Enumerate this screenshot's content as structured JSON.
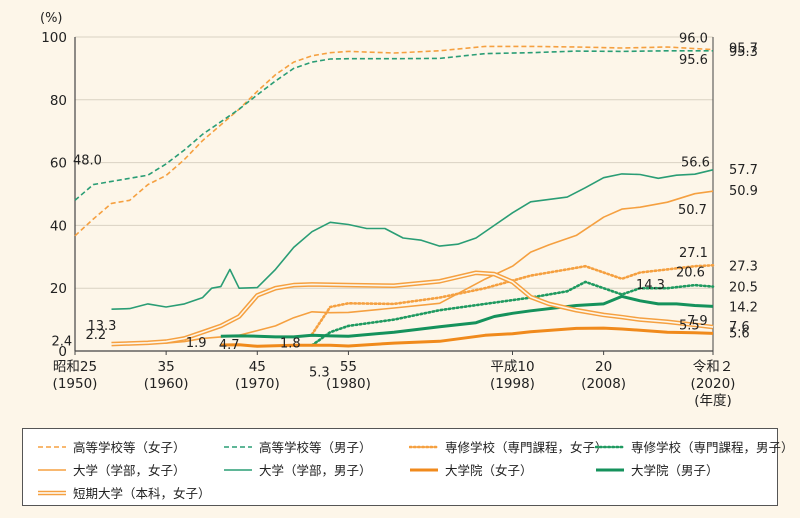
{
  "chart_data": {
    "type": "line",
    "ylabel": "(%)",
    "ylim": [
      0,
      100
    ],
    "yticks": [
      0,
      20,
      40,
      60,
      80,
      100
    ],
    "xlim": [
      1950,
      2020
    ],
    "xticks": [
      {
        "x": 1950,
        "lines": [
          "昭和25",
          "(1950)"
        ]
      },
      {
        "x": 1960,
        "lines": [
          "35",
          "(1960)"
        ]
      },
      {
        "x": 1970,
        "lines": [
          "45",
          "(1970)"
        ]
      },
      {
        "x": 1980,
        "lines": [
          "55",
          "(1980)"
        ]
      },
      {
        "x": 1998,
        "lines": [
          "平成10",
          "(1998)"
        ]
      },
      {
        "x": 2008,
        "lines": [
          "20",
          "(2008)"
        ]
      },
      {
        "x": 2020,
        "lines": [
          "令和２",
          "(2020)",
          "(年度)"
        ]
      }
    ],
    "grid": "horizontal",
    "legend": "bottom",
    "series": [
      {
        "name": "高等学校等（女子）",
        "color": "#f5a040",
        "style": "dashed",
        "points": [
          [
            1950,
            36.7
          ],
          [
            1952,
            42
          ],
          [
            1954,
            47
          ],
          [
            1956,
            48
          ],
          [
            1958,
            53
          ],
          [
            1960,
            55.9
          ],
          [
            1962,
            61
          ],
          [
            1964,
            67
          ],
          [
            1966,
            72
          ],
          [
            1968,
            77
          ],
          [
            1970,
            82.7
          ],
          [
            1972,
            88
          ],
          [
            1974,
            92
          ],
          [
            1976,
            94
          ],
          [
            1978,
            95
          ],
          [
            1980,
            95.4
          ],
          [
            1985,
            94.9
          ],
          [
            1990,
            95.6
          ],
          [
            1995,
            97
          ],
          [
            2000,
            97
          ],
          [
            2005,
            96.8
          ],
          [
            2010,
            96.5
          ],
          [
            2015,
            96.8
          ],
          [
            2020,
            96.0
          ]
        ]
      },
      {
        "name": "高等学校等（男子）",
        "color": "#2a9d75",
        "style": "dashed",
        "points": [
          [
            1950,
            48.0
          ],
          [
            1952,
            53
          ],
          [
            1954,
            54
          ],
          [
            1956,
            55
          ],
          [
            1958,
            56
          ],
          [
            1960,
            59.6
          ],
          [
            1962,
            64
          ],
          [
            1964,
            69
          ],
          [
            1966,
            73
          ],
          [
            1968,
            77
          ],
          [
            1970,
            81.6
          ],
          [
            1972,
            86
          ],
          [
            1974,
            90
          ],
          [
            1976,
            92
          ],
          [
            1978,
            93
          ],
          [
            1980,
            93.1
          ],
          [
            1985,
            93.1
          ],
          [
            1990,
            93.2
          ],
          [
            1995,
            94.7
          ],
          [
            2000,
            95
          ],
          [
            2005,
            95.5
          ],
          [
            2010,
            95.4
          ],
          [
            2015,
            95.6
          ],
          [
            2020,
            95.6
          ]
        ]
      },
      {
        "name": "専修学校（専門課程，女子）",
        "color": "#f5a040",
        "style": "dotted",
        "points": [
          [
            1976,
            5.3
          ],
          [
            1978,
            14
          ],
          [
            1980,
            15.2
          ],
          [
            1985,
            15
          ],
          [
            1990,
            17
          ],
          [
            1995,
            20
          ],
          [
            2000,
            24
          ],
          [
            2004,
            26
          ],
          [
            2006,
            27
          ],
          [
            2008,
            25
          ],
          [
            2010,
            23
          ],
          [
            2012,
            25
          ],
          [
            2015,
            26
          ],
          [
            2018,
            27
          ],
          [
            2020,
            27.3
          ]
        ]
      },
      {
        "name": "専修学校（専門課程，男子）",
        "color": "#1f9a60",
        "style": "dotted",
        "points": [
          [
            1976,
            1.8
          ],
          [
            1978,
            6
          ],
          [
            1980,
            8
          ],
          [
            1985,
            10
          ],
          [
            1990,
            13
          ],
          [
            1995,
            15
          ],
          [
            2000,
            17
          ],
          [
            2004,
            19
          ],
          [
            2006,
            22
          ],
          [
            2008,
            20
          ],
          [
            2010,
            18
          ],
          [
            2012,
            20
          ],
          [
            2015,
            20
          ],
          [
            2018,
            21
          ],
          [
            2020,
            20.5
          ]
        ]
      },
      {
        "name": "大学（学部，女子）",
        "color": "#f5a040",
        "style": "solid",
        "points": [
          [
            1954,
            2.4
          ],
          [
            1958,
            2.5
          ],
          [
            1960,
            2.5
          ],
          [
            1962,
            3
          ],
          [
            1964,
            4
          ],
          [
            1966,
            4.5
          ],
          [
            1968,
            5
          ],
          [
            1970,
            6.5
          ],
          [
            1972,
            8
          ],
          [
            1974,
            10.6
          ],
          [
            1976,
            12.5
          ],
          [
            1978,
            12.2
          ],
          [
            1980,
            12.3
          ],
          [
            1985,
            13.7
          ],
          [
            1990,
            15.2
          ],
          [
            1995,
            22.9
          ],
          [
            1998,
            27
          ],
          [
            2000,
            31.5
          ],
          [
            2002,
            33.8
          ],
          [
            2005,
            36.8
          ],
          [
            2008,
            42.6
          ],
          [
            2010,
            45.2
          ],
          [
            2012,
            45.8
          ],
          [
            2015,
            47.4
          ],
          [
            2018,
            50.1
          ],
          [
            2020,
            50.9
          ]
        ]
      },
      {
        "name": "大学（学部，男子）",
        "color": "#2a9d75",
        "style": "solid",
        "points": [
          [
            1954,
            13.3
          ],
          [
            1956,
            13.5
          ],
          [
            1958,
            15
          ],
          [
            1960,
            14.0
          ],
          [
            1962,
            15
          ],
          [
            1964,
            17
          ],
          [
            1965,
            20
          ],
          [
            1966,
            20.5
          ],
          [
            1967,
            26
          ],
          [
            1968,
            20
          ],
          [
            1970,
            20.2
          ],
          [
            1972,
            26
          ],
          [
            1974,
            33
          ],
          [
            1976,
            38
          ],
          [
            1978,
            41
          ],
          [
            1980,
            40.3
          ],
          [
            1982,
            39
          ],
          [
            1984,
            39
          ],
          [
            1986,
            36
          ],
          [
            1988,
            35.3
          ],
          [
            1990,
            33.4
          ],
          [
            1992,
            34
          ],
          [
            1994,
            36
          ],
          [
            1996,
            40
          ],
          [
            1998,
            44
          ],
          [
            2000,
            47.5
          ],
          [
            2004,
            49
          ],
          [
            2006,
            52
          ],
          [
            2008,
            55.2
          ],
          [
            2010,
            56.4
          ],
          [
            2012,
            56.2
          ],
          [
            2014,
            55
          ],
          [
            2016,
            56
          ],
          [
            2018,
            56.3
          ],
          [
            2020,
            57.7
          ]
        ]
      },
      {
        "name": "大学院（女子）",
        "color": "#f08a1c",
        "style": "solid-thick",
        "points": [
          [
            1966,
            1.9
          ],
          [
            1968,
            2
          ],
          [
            1970,
            1.5
          ],
          [
            1974,
            1.8
          ],
          [
            1978,
            1.8
          ],
          [
            1980,
            1.6
          ],
          [
            1985,
            2.5
          ],
          [
            1990,
            3.1
          ],
          [
            1995,
            5
          ],
          [
            1998,
            5.5
          ],
          [
            2000,
            6.1
          ],
          [
            2005,
            7.2
          ],
          [
            2008,
            7.3
          ],
          [
            2010,
            7.0
          ],
          [
            2015,
            6
          ],
          [
            2018,
            5.8
          ],
          [
            2020,
            5.6
          ]
        ]
      },
      {
        "name": "大学院（男子）",
        "color": "#15925c",
        "style": "solid-thick",
        "points": [
          [
            1966,
            4.7
          ],
          [
            1968,
            4.8
          ],
          [
            1970,
            4.7
          ],
          [
            1972,
            4.5
          ],
          [
            1974,
            4.5
          ],
          [
            1976,
            5
          ],
          [
            1978,
            4.8
          ],
          [
            1980,
            4.7
          ],
          [
            1985,
            6
          ],
          [
            1990,
            7.7
          ],
          [
            1994,
            9
          ],
          [
            1996,
            11
          ],
          [
            1998,
            12
          ],
          [
            2000,
            12.8
          ],
          [
            2005,
            14.5
          ],
          [
            2008,
            15
          ],
          [
            2010,
            17.4
          ],
          [
            2012,
            16
          ],
          [
            2014,
            15
          ],
          [
            2016,
            15
          ],
          [
            2018,
            14.5
          ],
          [
            2020,
            14.2
          ]
        ]
      },
      {
        "name": "短期大学（本科，女子）",
        "color": "#f5a040",
        "style": "double",
        "points": [
          [
            1954,
            2.2
          ],
          [
            1958,
            2.6
          ],
          [
            1960,
            3.0
          ],
          [
            1962,
            4
          ],
          [
            1964,
            6
          ],
          [
            1966,
            8
          ],
          [
            1968,
            11
          ],
          [
            1970,
            17.7
          ],
          [
            1972,
            20
          ],
          [
            1974,
            21
          ],
          [
            1976,
            21.2
          ],
          [
            1980,
            21.0
          ],
          [
            1985,
            20.8
          ],
          [
            1990,
            22.2
          ],
          [
            1994,
            24.9
          ],
          [
            1996,
            24.5
          ],
          [
            1998,
            22
          ],
          [
            2000,
            17.2
          ],
          [
            2002,
            15
          ],
          [
            2005,
            13.0
          ],
          [
            2008,
            11.5
          ],
          [
            2010,
            10.8
          ],
          [
            2012,
            10
          ],
          [
            2015,
            9.3
          ],
          [
            2018,
            8.3
          ],
          [
            2020,
            7.6
          ]
        ]
      }
    ],
    "annotations": [
      {
        "text": "48.0",
        "x": 1950,
        "y": 48.0,
        "series": "高等学校等（男子）"
      },
      {
        "text": "13.3",
        "x": 1954,
        "y": 13.3,
        "series": "大学（学部，男子）"
      },
      {
        "text": "2.4",
        "x": 1954,
        "y": 2.4,
        "series": "大学（学部，女子）"
      },
      {
        "text": "2.2",
        "x": 1954,
        "y": 2.2,
        "series": "短期大学（本科，女子）"
      },
      {
        "text": "4.7",
        "x": 1966,
        "y": 4.7,
        "series": "大学院（男子）"
      },
      {
        "text": "1.9",
        "x": 1966,
        "y": 1.9,
        "series": "大学院（女子）"
      },
      {
        "text": "5.3",
        "x": 1976,
        "y": 5.3,
        "series": "専修学校（専門課程，女子）"
      },
      {
        "text": "1.8",
        "x": 1976,
        "y": 1.8,
        "series": "専修学校（専門課程，男子）"
      },
      {
        "text": "96.0",
        "x": 2020,
        "y": 96.0,
        "series": "高等学校等（女子）"
      },
      {
        "text": "95.7",
        "x": 2020,
        "y": 95.7,
        "series": "高等学校等（女子）"
      },
      {
        "text": "95.6",
        "x": 2020,
        "y": 95.6,
        "series": "高等学校等（男子）"
      },
      {
        "text": "95.3",
        "x": 2020,
        "y": 95.3,
        "series": "高等学校等（男子）"
      },
      {
        "text": "56.6",
        "x": 2020,
        "y": 56.6,
        "series": "大学（学部，男子）"
      },
      {
        "text": "57.7",
        "x": 2020,
        "y": 57.7,
        "series": "大学（学部，男子）"
      },
      {
        "text": "50.9",
        "x": 2020,
        "y": 50.9,
        "series": "大学（学部，女子）"
      },
      {
        "text": "50.7",
        "x": 2020,
        "y": 50.7,
        "series": "大学（学部，女子）"
      },
      {
        "text": "27.1",
        "x": 2020,
        "y": 27.1,
        "series": "専修学校（専門課程，女子）"
      },
      {
        "text": "27.3",
        "x": 2020,
        "y": 27.3,
        "series": "専修学校（専門課程，女子）"
      },
      {
        "text": "14.3",
        "x": 2020,
        "y": 14.3,
        "series": "大学院（男子）"
      },
      {
        "text": "20.6",
        "x": 2020,
        "y": 20.6,
        "series": "専修学校（専門課程，男子）"
      },
      {
        "text": "20.5",
        "x": 2020,
        "y": 20.5,
        "series": "専修学校（専門課程，男子）"
      },
      {
        "text": "14.2",
        "x": 2020,
        "y": 14.2,
        "series": "大学院（男子）"
      },
      {
        "text": "7.9",
        "x": 2020,
        "y": 7.9,
        "series": "短期大学（本科，女子）"
      },
      {
        "text": "7.6",
        "x": 2020,
        "y": 7.6,
        "series": "短期大学（本科，女子）"
      },
      {
        "text": "5.5",
        "x": 2020,
        "y": 5.5,
        "series": "大学院（女子）"
      },
      {
        "text": "5.6",
        "x": 2020,
        "y": 5.6,
        "series": "大学院（女子）"
      }
    ]
  }
}
